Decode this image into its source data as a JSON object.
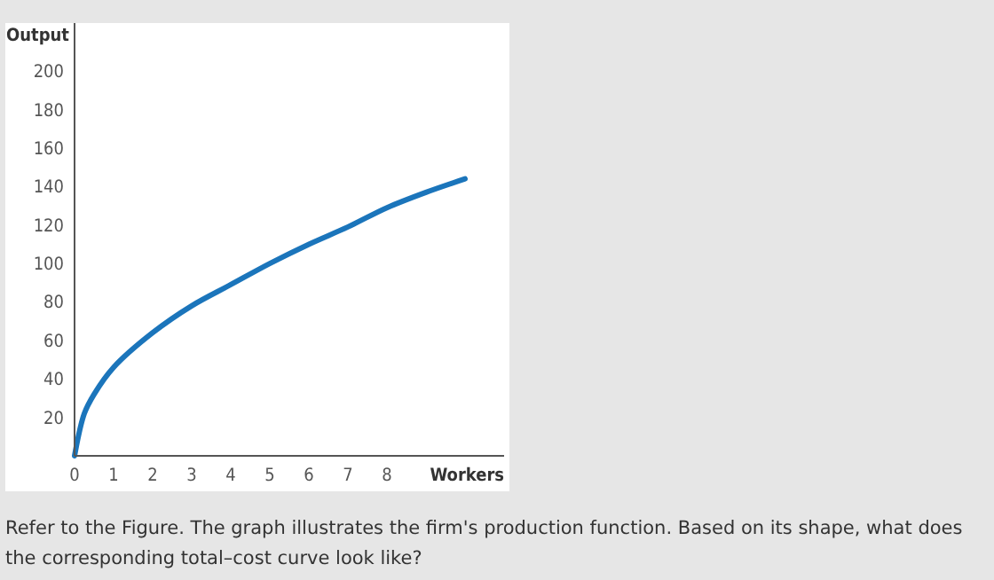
{
  "chart_data": {
    "type": "line",
    "xlabel": "Workers",
    "ylabel": "Output",
    "x": [
      0,
      0.25,
      0.5,
      1,
      2,
      3,
      4,
      5,
      6,
      7,
      8,
      9,
      10
    ],
    "series": [
      {
        "color": "#1b75bb",
        "values": [
          0,
          22,
          32,
          46,
          64,
          78,
          89,
          100,
          110,
          119,
          129,
          137,
          144
        ]
      }
    ],
    "xlim": [
      0,
      11
    ],
    "xticks": [
      0,
      1,
      2,
      3,
      4,
      5,
      6,
      7,
      8
    ],
    "ylim": [
      0,
      225
    ],
    "yticks": [
      20,
      40,
      60,
      80,
      100,
      120,
      140,
      160,
      180,
      200
    ],
    "grid": false,
    "marker": "none",
    "line_style": "solid",
    "annotations": [
      "Refer to the Figure. The graph illustrates the firm's production function. Based on its shape, what does the corresponding total–cost curve look like?"
    ]
  }
}
